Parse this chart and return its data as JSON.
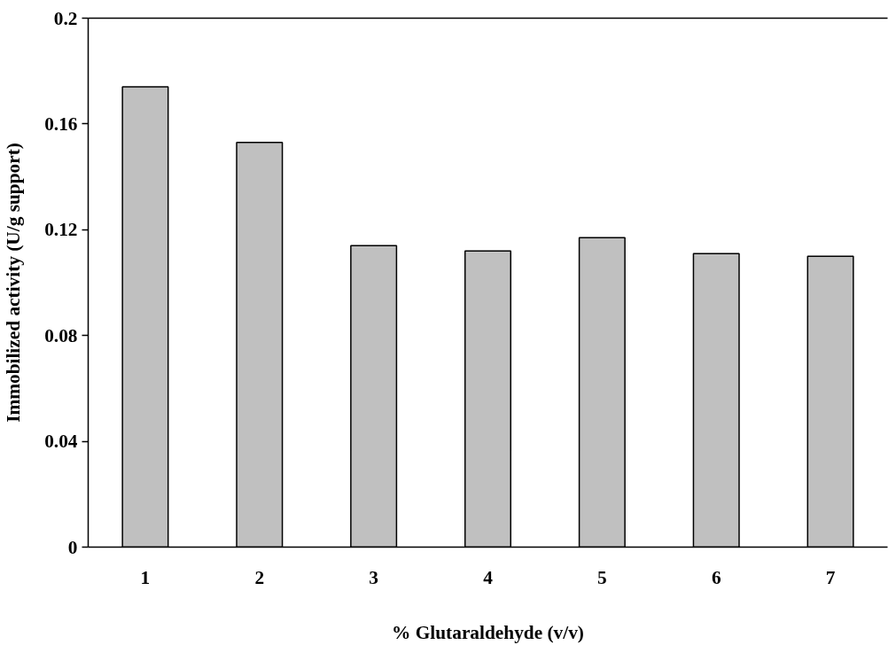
{
  "chart_data": {
    "type": "bar",
    "xlabel": "% Glutaraldehyde (v/v)",
    "ylabel": "Immobilized activity (U/g support)",
    "categories": [
      "1",
      "2",
      "3",
      "4",
      "5",
      "6",
      "7"
    ],
    "values": [
      0.174,
      0.153,
      0.114,
      0.112,
      0.117,
      0.111,
      0.11
    ],
    "color": "#c0c0c0",
    "ylim": [
      0,
      0.2
    ],
    "yticks": [
      {
        "value": 0,
        "label": "0"
      },
      0.04,
      0.08,
      0.12,
      0.16,
      0.2
    ],
    "grid": false
  }
}
